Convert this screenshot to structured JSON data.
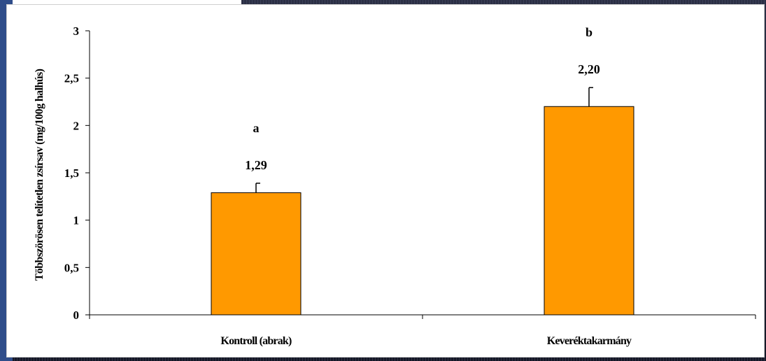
{
  "chart_data": {
    "type": "bar",
    "categories": [
      "Kontroll (abrak)",
      "Keveréktakarmány"
    ],
    "values": [
      1.29,
      2.2
    ],
    "errors": [
      0.1,
      0.2
    ],
    "value_labels": [
      "1,29",
      "2,20"
    ],
    "significance_letters": [
      "a",
      "b"
    ],
    "title": "",
    "xlabel": "",
    "ylabel": "Többszörösen telítetlen zsírsav (mg/100g halhús)",
    "ylim": [
      0,
      3
    ],
    "yticks": [
      0,
      0.5,
      1,
      1.5,
      2,
      2.5,
      3
    ],
    "ytick_labels": [
      "0",
      "0,5",
      "1",
      "1,5",
      "2",
      "2,5",
      "3"
    ],
    "grid": false,
    "legend": "none",
    "bar_color": "#FF9900",
    "bar_edge_color": "#000000"
  }
}
